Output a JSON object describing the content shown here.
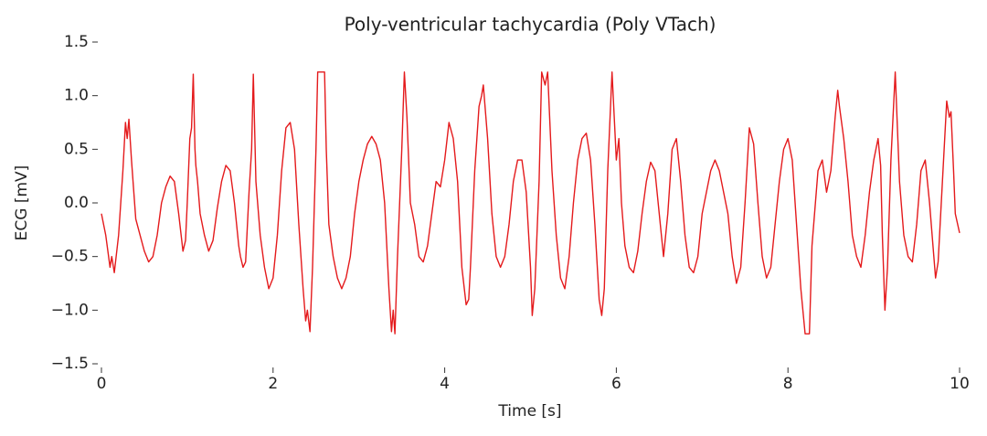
{
  "chart_data": {
    "type": "line",
    "title": "Poly-ventricular tachycardia (Poly VTach)",
    "xlabel": "Time [s]",
    "ylabel": "ECG [mV]",
    "x": [
      0,
      0.05,
      0.1,
      0.12,
      0.15,
      0.2,
      0.25,
      0.28,
      0.3,
      0.32,
      0.35,
      0.4,
      0.45,
      0.5,
      0.55,
      0.6,
      0.65,
      0.7,
      0.75,
      0.8,
      0.85,
      0.9,
      0.95,
      0.98,
      1.0,
      1.03,
      1.05,
      1.07,
      1.09,
      1.1,
      1.12,
      1.15,
      1.2,
      1.25,
      1.3,
      1.35,
      1.4,
      1.45,
      1.5,
      1.55,
      1.6,
      1.62,
      1.65,
      1.68,
      1.72,
      1.75,
      1.77,
      1.8,
      1.85,
      1.9,
      1.95,
      2.0,
      2.05,
      2.1,
      2.15,
      2.2,
      2.25,
      2.3,
      2.35,
      2.38,
      2.4,
      2.43,
      2.46,
      2.5,
      2.52,
      2.6,
      2.62,
      2.65,
      2.7,
      2.75,
      2.8,
      2.85,
      2.9,
      2.95,
      3.0,
      3.05,
      3.1,
      3.15,
      3.2,
      3.25,
      3.3,
      3.35,
      3.38,
      3.4,
      3.42,
      3.45,
      3.5,
      3.53,
      3.56,
      3.6,
      3.65,
      3.7,
      3.75,
      3.8,
      3.85,
      3.9,
      3.95,
      4.0,
      4.05,
      4.1,
      4.15,
      4.2,
      4.25,
      4.28,
      4.3,
      4.35,
      4.4,
      4.43,
      4.45,
      4.5,
      4.55,
      4.6,
      4.65,
      4.7,
      4.75,
      4.8,
      4.85,
      4.9,
      4.95,
      5.0,
      5.02,
      5.05,
      5.1,
      5.13,
      5.17,
      5.2,
      5.25,
      5.3,
      5.35,
      5.4,
      5.45,
      5.5,
      5.55,
      5.6,
      5.65,
      5.7,
      5.75,
      5.8,
      5.83,
      5.86,
      5.9,
      5.95,
      6.0,
      6.03,
      6.06,
      6.1,
      6.15,
      6.2,
      6.25,
      6.3,
      6.35,
      6.4,
      6.45,
      6.5,
      6.55,
      6.6,
      6.65,
      6.7,
      6.75,
      6.8,
      6.85,
      6.9,
      6.95,
      7.0,
      7.1,
      7.15,
      7.2,
      7.3,
      7.35,
      7.4,
      7.45,
      7.5,
      7.55,
      7.6,
      7.65,
      7.7,
      7.75,
      7.8,
      7.85,
      7.9,
      7.95,
      8.0,
      8.05,
      8.1,
      8.15,
      8.2,
      8.25,
      8.28,
      8.35,
      8.4,
      8.45,
      8.5,
      8.55,
      8.58,
      8.6,
      8.65,
      8.7,
      8.75,
      8.8,
      8.85,
      8.9,
      8.95,
      9.0,
      9.05,
      9.08,
      9.1,
      9.13,
      9.16,
      9.2,
      9.25,
      9.3,
      9.35,
      9.4,
      9.45,
      9.5,
      9.55,
      9.6,
      9.65,
      9.7,
      9.72,
      9.75,
      9.8,
      9.85,
      9.88,
      9.9,
      9.93,
      9.95,
      10.0
    ],
    "series": [
      {
        "name": "ECG",
        "color": "#e41a1c",
        "values": [
          -0.1,
          -0.3,
          -0.6,
          -0.5,
          -0.65,
          -0.3,
          0.3,
          0.75,
          0.6,
          0.78,
          0.4,
          -0.15,
          -0.3,
          -0.45,
          -0.55,
          -0.5,
          -0.3,
          0.0,
          0.15,
          0.25,
          0.2,
          -0.1,
          -0.45,
          -0.35,
          0.0,
          0.6,
          0.7,
          1.2,
          0.5,
          0.35,
          0.2,
          -0.1,
          -0.3,
          -0.45,
          -0.35,
          -0.05,
          0.2,
          0.35,
          0.3,
          0.0,
          -0.4,
          -0.5,
          -0.6,
          -0.55,
          0.1,
          0.5,
          1.2,
          0.2,
          -0.3,
          -0.6,
          -0.8,
          -0.7,
          -0.3,
          0.3,
          0.7,
          0.75,
          0.5,
          -0.2,
          -0.8,
          -1.1,
          -1.0,
          -1.2,
          -0.6,
          0.5,
          1.22,
          1.22,
          0.5,
          -0.2,
          -0.5,
          -0.7,
          -0.8,
          -0.7,
          -0.5,
          -0.1,
          0.2,
          0.4,
          0.55,
          0.62,
          0.55,
          0.4,
          0.0,
          -0.8,
          -1.2,
          -1.0,
          -1.22,
          -0.5,
          0.5,
          1.22,
          0.8,
          0.0,
          -0.2,
          -0.5,
          -0.55,
          -0.4,
          -0.1,
          0.2,
          0.15,
          0.4,
          0.75,
          0.6,
          0.2,
          -0.6,
          -0.95,
          -0.9,
          -0.6,
          0.3,
          0.9,
          1.0,
          1.1,
          0.6,
          -0.1,
          -0.5,
          -0.6,
          -0.5,
          -0.2,
          0.2,
          0.4,
          0.4,
          0.1,
          -0.6,
          -1.05,
          -0.8,
          0.2,
          1.22,
          1.1,
          1.22,
          0.3,
          -0.3,
          -0.7,
          -0.8,
          -0.5,
          0.0,
          0.4,
          0.6,
          0.65,
          0.4,
          -0.2,
          -0.9,
          -1.05,
          -0.8,
          0.3,
          1.22,
          0.4,
          0.6,
          0.0,
          -0.4,
          -0.6,
          -0.65,
          -0.45,
          -0.1,
          0.2,
          0.38,
          0.3,
          -0.1,
          -0.5,
          -0.1,
          0.5,
          0.6,
          0.2,
          -0.3,
          -0.6,
          -0.65,
          -0.5,
          -0.1,
          0.3,
          0.4,
          0.3,
          -0.1,
          -0.5,
          -0.75,
          -0.6,
          0.0,
          0.7,
          0.55,
          0.0,
          -0.5,
          -0.7,
          -0.6,
          -0.2,
          0.2,
          0.5,
          0.6,
          0.4,
          -0.2,
          -0.8,
          -1.22,
          -1.22,
          -0.4,
          0.3,
          0.4,
          0.1,
          0.3,
          0.8,
          1.05,
          0.9,
          0.6,
          0.2,
          -0.3,
          -0.5,
          -0.6,
          -0.3,
          0.1,
          0.4,
          0.6,
          0.35,
          -0.3,
          -1.0,
          -0.6,
          0.4,
          1.22,
          0.2,
          -0.3,
          -0.5,
          -0.55,
          -0.2,
          0.3,
          0.4,
          0.0,
          -0.5,
          -0.7,
          -0.55,
          0.2,
          0.95,
          0.8,
          0.85,
          0.3,
          -0.1,
          -0.28
        ]
      }
    ],
    "xlim": [
      0,
      10
    ],
    "xticks": [
      0,
      2,
      4,
      6,
      8,
      10
    ],
    "ylim": [
      -1.5,
      1.5
    ],
    "yticks": [
      {
        "value": -1.5,
        "label": "−1.5"
      },
      {
        "value": -1.0,
        "label": "−1.0"
      },
      {
        "value": -0.5,
        "label": "−0.5"
      },
      {
        "value": 0.0,
        "label": "0.0"
      },
      {
        "value": 0.5,
        "label": "0.5"
      },
      {
        "value": 1.0,
        "label": "1.0"
      },
      {
        "value": 1.5,
        "label": "1.5"
      }
    ],
    "grid": false
  }
}
